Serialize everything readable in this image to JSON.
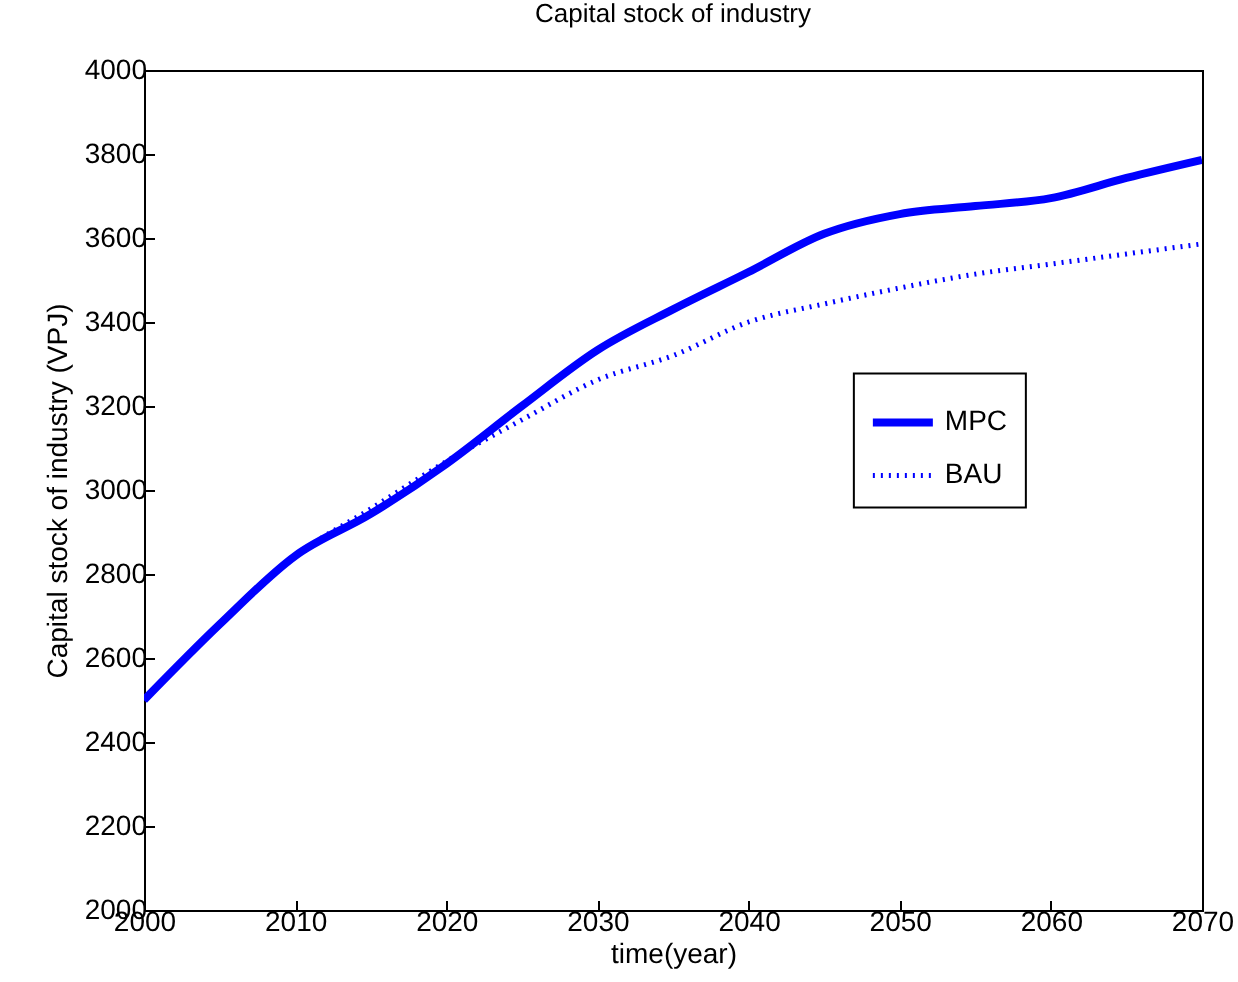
{
  "chart_data": {
    "type": "line",
    "title": "Capital stock of industry",
    "xlabel": "time(year)",
    "ylabel": "Capital stock of industry (VPJ)",
    "x": [
      2000,
      2005,
      2010,
      2015,
      2020,
      2025,
      2030,
      2035,
      2040,
      2045,
      2050,
      2055,
      2060,
      2065,
      2070
    ],
    "series": [
      {
        "name": "MPC",
        "color": "#0000ff",
        "line_style": "solid",
        "values": [
          2500,
          2680,
          2843,
          2943,
          3062,
          3200,
          3333,
          3430,
          3519,
          3610,
          3657,
          3676,
          3695,
          3743,
          3786
        ]
      },
      {
        "name": "BAU",
        "color": "#0000ff",
        "line_style": "dotted",
        "values": [
          2500,
          2680,
          2843,
          2955,
          3068,
          3167,
          3262,
          3320,
          3400,
          3443,
          3481,
          3514,
          3538,
          3562,
          3586
        ]
      }
    ],
    "xlim": [
      2000,
      2070
    ],
    "xticks": [
      2000,
      2010,
      2020,
      2030,
      2040,
      2050,
      2060,
      2070
    ],
    "ylim": [
      2000,
      4000
    ],
    "yticks": [
      2000,
      2200,
      2400,
      2600,
      2800,
      3000,
      3200,
      3400,
      3600,
      3800,
      4000
    ],
    "legend": "right",
    "marker": "none",
    "grid": false
  }
}
